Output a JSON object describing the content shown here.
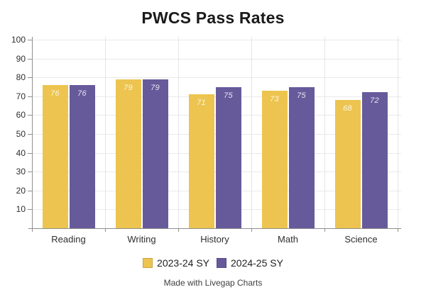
{
  "title": "PWCS Pass Rates",
  "footer": "Made with Livegap Charts",
  "colors": {
    "series1": "#ecc44f",
    "series2": "#675a9b",
    "axis": "#8f8f8f",
    "grid": "#e9e9e9",
    "value_label": "rgba(255,255,255,0.85)"
  },
  "chart_data": {
    "type": "bar",
    "title": "PWCS Pass Rates",
    "categories": [
      "Reading",
      "Writing",
      "History",
      "Math",
      "Science"
    ],
    "series": [
      {
        "name": "2023-24 SY",
        "color": "#ecc44f",
        "values": [
          76,
          79,
          71,
          73,
          68
        ]
      },
      {
        "name": "2024-25 SY",
        "color": "#675a9b",
        "values": [
          76,
          79,
          75,
          75,
          72
        ]
      }
    ],
    "xlabel": "",
    "ylabel": "",
    "ylim": [
      0,
      100
    ],
    "ytick_interval": 10,
    "ytick_labels": [
      "10",
      "20",
      "30",
      "40",
      "50",
      "60",
      "70",
      "80",
      "90",
      "100"
    ],
    "grid": true,
    "value_labels": true,
    "legend_position": "bottom"
  }
}
